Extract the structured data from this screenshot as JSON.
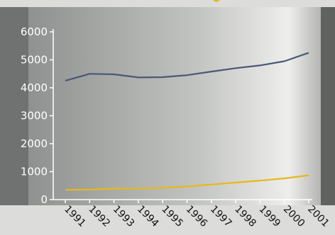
{
  "chart_data": {
    "type": "line",
    "x": [
      "1991",
      "1992",
      "1993",
      "1994",
      "1995",
      "1996",
      "1997",
      "1998",
      "1999",
      "2000",
      "2001"
    ],
    "ylim": [
      0,
      6000
    ],
    "yticks": [
      0,
      1000,
      2000,
      3000,
      4000,
      5000,
      6000
    ],
    "grid": false,
    "legend": "none",
    "series": [
      {
        "color": "#4a5878",
        "values": [
          4250,
          4500,
          4480,
          4370,
          4380,
          4450,
          4580,
          4700,
          4800,
          4950,
          5250
        ]
      },
      {
        "color": "#e8b81a",
        "values": [
          350,
          360,
          390,
          400,
          420,
          470,
          540,
          610,
          680,
          760,
          870
        ]
      }
    ]
  }
}
